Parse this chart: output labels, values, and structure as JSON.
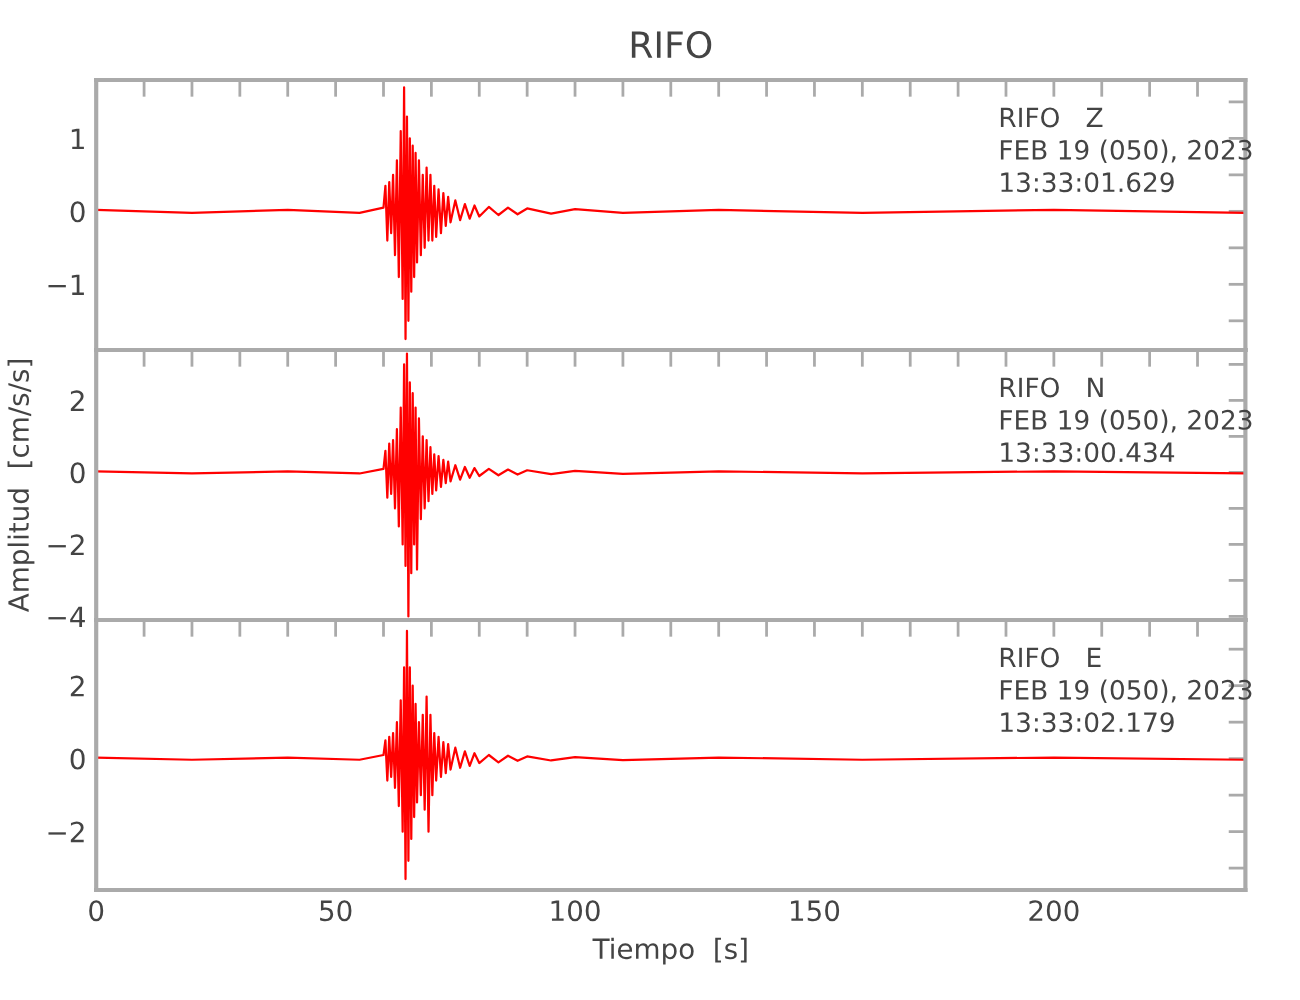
{
  "chart_data": [
    {
      "type": "line",
      "title": "RIFO",
      "annotations": [
        "RIFO   Z",
        "FEB 19 (050), 2023",
        "13:33:01.629"
      ],
      "xlim": [
        0,
        240
      ],
      "ylim": [
        -1.9,
        1.8
      ],
      "tick_labels": "y",
      "grid": false,
      "xticks": [
        0,
        {
          "value": 10,
          "label": null
        },
        {
          "value": 20,
          "label": null
        },
        {
          "value": 30,
          "label": null
        },
        {
          "value": 40,
          "label": null
        },
        50,
        {
          "value": 60,
          "label": null
        },
        {
          "value": 70,
          "label": null
        },
        {
          "value": 80,
          "label": null
        },
        {
          "value": 90,
          "label": null
        },
        100,
        {
          "value": 110,
          "label": null
        },
        {
          "value": 120,
          "label": null
        },
        {
          "value": 130,
          "label": null
        },
        {
          "value": 140,
          "label": null
        },
        150,
        {
          "value": 160,
          "label": null
        },
        {
          "value": 170,
          "label": null
        },
        {
          "value": 180,
          "label": null
        },
        {
          "value": 190,
          "label": null
        },
        200,
        {
          "value": 210,
          "label": null
        },
        {
          "value": 220,
          "label": null
        },
        {
          "value": 230,
          "label": null
        }
      ],
      "yticks": [
        {
          "value": -1.5,
          "label": null
        },
        {
          "value": -1,
          "label": "−1"
        },
        {
          "value": -0.5,
          "label": null
        },
        0,
        {
          "value": 0.5,
          "label": null
        },
        1,
        {
          "value": 1.5,
          "label": null
        }
      ],
      "series": [
        {
          "color": "#ff0000",
          "x": [
            0,
            20,
            40,
            55,
            60,
            60.4,
            60.8,
            61.2,
            61.6,
            62,
            62.4,
            62.8,
            63.2,
            63.6,
            64,
            64.3,
            64.6,
            64.9,
            65.2,
            65.5,
            65.8,
            66.1,
            66.4,
            66.7,
            67,
            67.4,
            67.8,
            68.2,
            68.6,
            69,
            69.4,
            69.8,
            70.2,
            70.6,
            71,
            71.5,
            72,
            72.5,
            73,
            73.5,
            74,
            75,
            76,
            77,
            78,
            79,
            80,
            82,
            84,
            86,
            88,
            90,
            95,
            100,
            110,
            130,
            160,
            200,
            240
          ],
          "values": [
            0.02,
            -0.02,
            0.02,
            -0.02,
            0.05,
            0.35,
            -0.4,
            0.4,
            -0.3,
            0.5,
            -0.6,
            0.7,
            -0.9,
            1.1,
            -1.2,
            1.7,
            -1.75,
            1.3,
            -1.5,
            1.0,
            -1.1,
            0.9,
            -0.9,
            0.8,
            -0.7,
            0.7,
            -0.6,
            0.5,
            -0.5,
            0.6,
            -0.4,
            0.5,
            -0.4,
            0.35,
            -0.35,
            0.3,
            -0.3,
            0.25,
            -0.2,
            0.2,
            -0.15,
            0.15,
            -0.12,
            0.1,
            -0.1,
            0.08,
            -0.07,
            0.06,
            -0.05,
            0.05,
            -0.04,
            0.04,
            -0.03,
            0.03,
            -0.02,
            0.02,
            -0.02,
            0.02,
            -0.02
          ]
        }
      ]
    },
    {
      "type": "line",
      "ylabel": "Amplitud  [cm/s/s]",
      "annotations": [
        "RIFO   N",
        "FEB 19 (050), 2023",
        "13:33:00.434"
      ],
      "xlim": [
        0,
        240
      ],
      "ylim": [
        -4.1,
        3.4
      ],
      "tick_labels": "y",
      "grid": false,
      "xticks": [
        0,
        {
          "value": 10,
          "label": null
        },
        {
          "value": 20,
          "label": null
        },
        {
          "value": 30,
          "label": null
        },
        {
          "value": 40,
          "label": null
        },
        50,
        {
          "value": 60,
          "label": null
        },
        {
          "value": 70,
          "label": null
        },
        {
          "value": 80,
          "label": null
        },
        {
          "value": 90,
          "label": null
        },
        100,
        {
          "value": 110,
          "label": null
        },
        {
          "value": 120,
          "label": null
        },
        {
          "value": 130,
          "label": null
        },
        {
          "value": 140,
          "label": null
        },
        150,
        {
          "value": 160,
          "label": null
        },
        {
          "value": 170,
          "label": null
        },
        {
          "value": 180,
          "label": null
        },
        {
          "value": 190,
          "label": null
        },
        200,
        {
          "value": 210,
          "label": null
        },
        {
          "value": 220,
          "label": null
        },
        {
          "value": 230,
          "label": null
        }
      ],
      "yticks": [
        {
          "value": -4,
          "label": "−4"
        },
        {
          "value": -3,
          "label": null
        },
        {
          "value": -2,
          "label": "−2"
        },
        {
          "value": -1,
          "label": null
        },
        0,
        {
          "value": 1,
          "label": null
        },
        2,
        {
          "value": 3,
          "label": null
        }
      ],
      "series": [
        {
          "color": "#ff0000",
          "x": [
            0,
            20,
            40,
            55,
            60,
            60.4,
            60.8,
            61.2,
            61.6,
            62,
            62.4,
            62.8,
            63.2,
            63.6,
            64,
            64.3,
            64.6,
            64.9,
            65.2,
            65.5,
            65.8,
            66.1,
            66.4,
            66.7,
            67,
            67.4,
            67.8,
            68.2,
            68.6,
            69,
            69.4,
            69.8,
            70.2,
            70.6,
            71,
            71.5,
            72,
            72.5,
            73,
            73.5,
            74,
            75,
            76,
            77,
            78,
            79,
            80,
            82,
            84,
            86,
            88,
            90,
            95,
            100,
            110,
            130,
            160,
            200,
            240
          ],
          "values": [
            0.03,
            -0.03,
            0.03,
            -0.03,
            0.1,
            0.6,
            -0.7,
            0.8,
            -0.6,
            0.9,
            -1.0,
            1.2,
            -1.5,
            1.8,
            -2.0,
            3.0,
            -2.6,
            3.3,
            -4.0,
            2.5,
            -2.8,
            2.2,
            -2.0,
            1.8,
            -2.7,
            1.5,
            -1.3,
            1.0,
            -1.0,
            0.9,
            -0.8,
            0.7,
            -0.6,
            0.5,
            -0.5,
            0.45,
            -0.4,
            0.35,
            -0.3,
            0.3,
            -0.25,
            0.2,
            -0.2,
            0.15,
            -0.15,
            0.12,
            -0.1,
            0.1,
            -0.08,
            0.08,
            -0.06,
            0.06,
            -0.05,
            0.04,
            -0.04,
            0.03,
            -0.03,
            0.03,
            -0.03
          ]
        }
      ]
    },
    {
      "type": "line",
      "xlabel": "Tiempo  [s]",
      "annotations": [
        "RIFO   E",
        "FEB 19 (050), 2023",
        "13:33:02.179"
      ],
      "xlim": [
        0,
        240
      ],
      "ylim": [
        -3.6,
        3.8
      ],
      "grid": false,
      "xticks": [
        0,
        {
          "value": 10,
          "label": null
        },
        {
          "value": 20,
          "label": null
        },
        {
          "value": 30,
          "label": null
        },
        {
          "value": 40,
          "label": null
        },
        50,
        {
          "value": 60,
          "label": null
        },
        {
          "value": 70,
          "label": null
        },
        {
          "value": 80,
          "label": null
        },
        {
          "value": 90,
          "label": null
        },
        100,
        {
          "value": 110,
          "label": null
        },
        {
          "value": 120,
          "label": null
        },
        {
          "value": 130,
          "label": null
        },
        {
          "value": 140,
          "label": null
        },
        150,
        {
          "value": 160,
          "label": null
        },
        {
          "value": 170,
          "label": null
        },
        {
          "value": 180,
          "label": null
        },
        {
          "value": 190,
          "label": null
        },
        200,
        {
          "value": 210,
          "label": null
        },
        {
          "value": 220,
          "label": null
        },
        {
          "value": 230,
          "label": null
        }
      ],
      "yticks": [
        {
          "value": -3,
          "label": null
        },
        {
          "value": -2,
          "label": "−2"
        },
        {
          "value": -1,
          "label": null
        },
        0,
        {
          "value": 1,
          "label": null
        },
        2,
        {
          "value": 3,
          "label": null
        }
      ],
      "series": [
        {
          "color": "#ff0000",
          "x": [
            0,
            20,
            40,
            55,
            60,
            60.4,
            60.8,
            61.2,
            61.6,
            62,
            62.4,
            62.8,
            63.2,
            63.6,
            64,
            64.3,
            64.6,
            64.9,
            65.2,
            65.5,
            65.8,
            66.1,
            66.4,
            66.7,
            67,
            67.4,
            67.8,
            68.2,
            68.6,
            69,
            69.4,
            69.8,
            70.2,
            70.6,
            71,
            71.5,
            72,
            72.5,
            73,
            73.5,
            74,
            75,
            76,
            77,
            78,
            79,
            80,
            82,
            84,
            86,
            88,
            90,
            95,
            100,
            110,
            130,
            160,
            200,
            240
          ],
          "values": [
            0.03,
            -0.03,
            0.03,
            -0.03,
            0.1,
            0.5,
            -0.6,
            0.6,
            -0.5,
            0.7,
            -0.8,
            1.0,
            -1.3,
            1.6,
            -2.0,
            2.5,
            -3.3,
            3.5,
            -2.8,
            2.5,
            -2.2,
            2.0,
            -1.6,
            1.5,
            -1.2,
            1.0,
            -1.0,
            1.2,
            -1.4,
            1.7,
            -2.0,
            1.2,
            -1.0,
            0.7,
            -0.6,
            0.6,
            -0.5,
            0.45,
            -0.4,
            0.4,
            -0.3,
            0.3,
            -0.25,
            0.2,
            -0.2,
            0.15,
            -0.12,
            0.1,
            -0.1,
            0.08,
            -0.06,
            0.06,
            -0.05,
            0.04,
            -0.04,
            0.03,
            -0.03,
            0.03,
            -0.03
          ]
        }
      ]
    }
  ]
}
